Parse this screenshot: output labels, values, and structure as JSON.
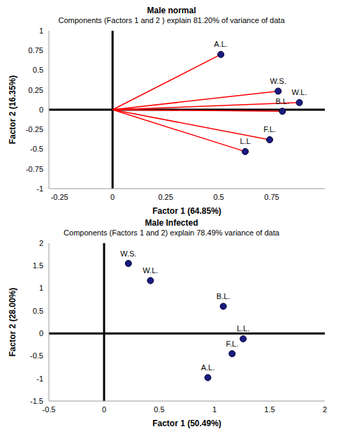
{
  "chart_data": [
    {
      "type": "biplot",
      "title": "Male normal",
      "subtitle": "Components (Factors 1 and 2 ) explain 81.20% of variance of data",
      "x_label": "Factor 1 (64.85%)",
      "y_label": "Factor 2 (16.35%)",
      "labels": [
        "A.L.",
        "W.S.",
        "W.L.",
        "B.L.",
        "F.L.",
        "L.L"
      ],
      "x": [
        0.51,
        0.78,
        0.88,
        0.8,
        0.74,
        0.625
      ],
      "values": [
        0.7,
        0.235,
        0.09,
        -0.02,
        -0.38,
        -0.53
      ],
      "color": "#1a1a80",
      "xlim": [
        -0.3,
        1
      ],
      "xticks": [
        -0.25,
        0,
        0.25,
        0.5,
        0.75
      ],
      "ylim": [
        -1,
        1
      ],
      "yticks": [
        -1,
        -0.75,
        -0.5,
        -0.25,
        0,
        0.25,
        0.5,
        0.75,
        1
      ],
      "grid": false
    },
    {
      "type": "scatter",
      "title": "Male Infected",
      "subtitle": "Components (Factors 1 and 2) explain 78.49% variance of data",
      "x_label": "Factor 1 (50.49%)",
      "y_label": "Factor 2 (28.00%)",
      "labels": [
        "W.S.",
        "W.L.",
        "B.L.",
        "L.L.",
        "F.L.",
        "A.L."
      ],
      "x": [
        0.22,
        0.42,
        1.08,
        1.26,
        1.16,
        0.94
      ],
      "values": [
        1.55,
        1.17,
        0.6,
        -0.12,
        -0.45,
        -0.98
      ],
      "color": "#1a1a80",
      "xlim": [
        -0.5,
        2
      ],
      "xticks": [
        -0.5,
        0,
        0.5,
        1,
        1.5,
        2
      ],
      "ylim": [
        -1.5,
        2
      ],
      "yticks": [
        -1.5,
        -1,
        -0.5,
        0,
        0.5,
        1,
        1.5,
        2
      ],
      "grid": false
    }
  ]
}
